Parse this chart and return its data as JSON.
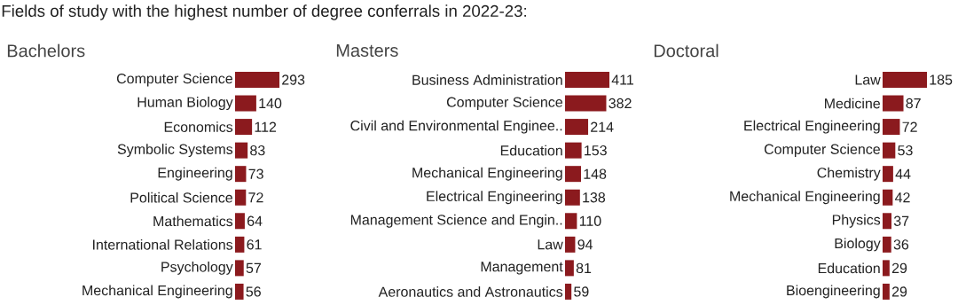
{
  "chart_data": [
    {
      "type": "other",
      "title": "Fields of study with the highest number of degree conferrals in 2022-23:"
    },
    {
      "type": "bar",
      "orientation": "horizontal",
      "title": "Bachelors",
      "data_labels": true,
      "color": "#8b1a1e",
      "categories": [
        "Computer Science",
        "Human Biology",
        "Economics",
        "Symbolic Systems",
        "Engineering",
        "Political Science",
        "Mathematics",
        "International Relations",
        "Psychology",
        "Mechanical Engineering"
      ],
      "values": [
        293,
        140,
        112,
        83,
        73,
        72,
        64,
        61,
        57,
        56
      ]
    },
    {
      "type": "bar",
      "orientation": "horizontal",
      "title": "Masters",
      "data_labels": true,
      "color": "#8b1a1e",
      "categories": [
        "Business Administration",
        "Computer Science",
        "Civil and Environmental Enginee..",
        "Education",
        "Mechanical Engineering",
        "Electrical Engineering",
        "Management Science and Engin..",
        "Law",
        "Management",
        "Aeronautics and Astronautics"
      ],
      "values": [
        411,
        382,
        214,
        153,
        148,
        138,
        110,
        94,
        81,
        59
      ]
    },
    {
      "type": "bar",
      "orientation": "horizontal",
      "title": "Doctoral",
      "data_labels": true,
      "color": "#8b1a1e",
      "categories": [
        "Law",
        "Medicine",
        "Electrical Engineering",
        "Computer Science",
        "Chemistry",
        "Mechanical Engineering",
        "Physics",
        "Biology",
        "Education",
        "Bioengineering"
      ],
      "values": [
        185,
        87,
        72,
        53,
        44,
        42,
        37,
        36,
        29,
        29
      ]
    }
  ]
}
